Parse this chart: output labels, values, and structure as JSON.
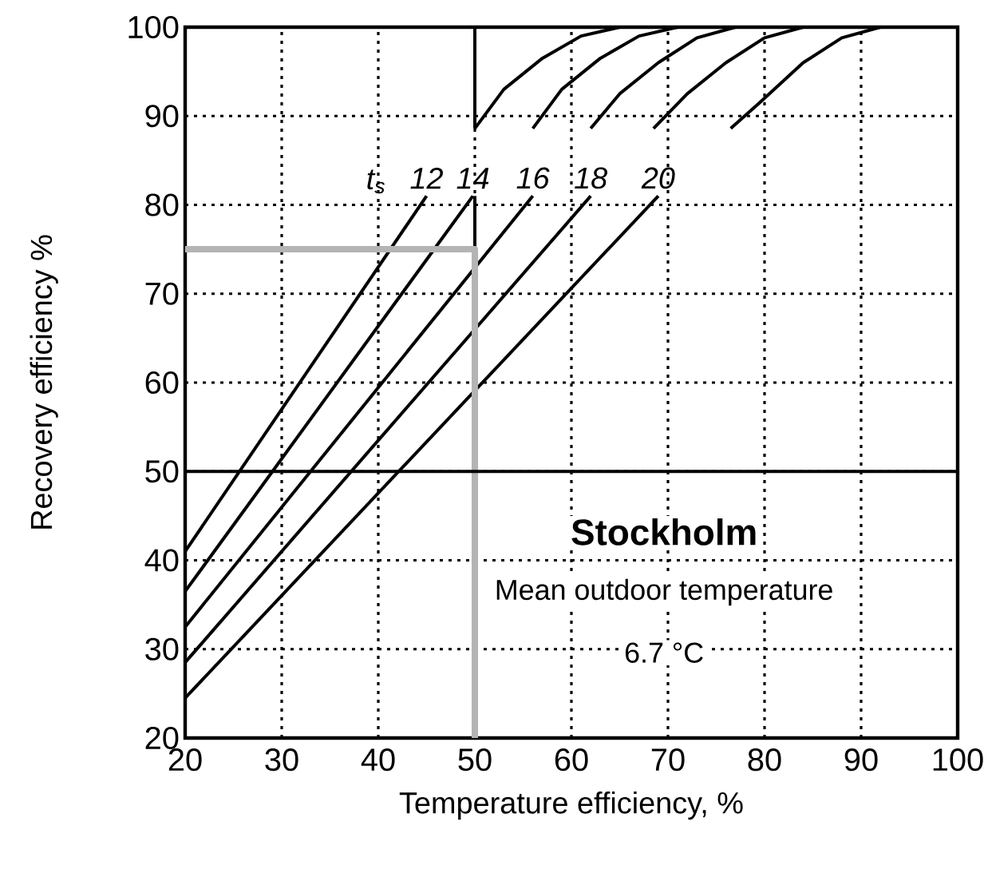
{
  "chart_data": {
    "type": "line",
    "xlabel": "Temperature efficiency, %",
    "ylabel": "Recovery efficiency %",
    "legend_title": "t$_{s}$",
    "xlim": [
      20,
      100
    ],
    "ylim": [
      20,
      100
    ],
    "xticks": [
      20,
      30,
      40,
      50,
      60,
      70,
      80,
      90,
      100
    ],
    "yticks": [
      20,
      30,
      40,
      50,
      60,
      70,
      80,
      90,
      100
    ],
    "grid": true,
    "series": [
      {
        "name": "12",
        "color": "#000000",
        "x": [
          20,
          45
        ],
        "values": [
          41,
          81
        ]
      },
      {
        "name": "14",
        "color": "#000000",
        "x": [
          20,
          49.8
        ],
        "values": [
          36.5,
          81
        ]
      },
      {
        "name": "16",
        "color": "#000000",
        "x": [
          20,
          56
        ],
        "values": [
          32.5,
          81
        ]
      },
      {
        "name": "18",
        "color": "#000000",
        "x": [
          20,
          62
        ],
        "values": [
          28.5,
          81
        ]
      },
      {
        "name": "20",
        "color": "#000000",
        "x": [
          20,
          69
        ],
        "values": [
          24.5,
          81
        ]
      },
      {
        "color": "#000000",
        "x": [
          50,
          53,
          57,
          61,
          65
        ],
        "values": [
          88.6,
          93,
          96.5,
          99,
          100
        ]
      },
      {
        "color": "#000000",
        "x": [
          56,
          59,
          63,
          67,
          71
        ],
        "values": [
          88.6,
          93,
          96.5,
          99,
          100
        ]
      },
      {
        "color": "#000000",
        "x": [
          62,
          65,
          69,
          73,
          77
        ],
        "values": [
          88.6,
          92.5,
          96,
          98.8,
          100
        ]
      },
      {
        "color": "#000000",
        "x": [
          68.5,
          72,
          76,
          80,
          84
        ],
        "values": [
          88.6,
          92.5,
          96,
          98.8,
          100
        ]
      },
      {
        "color": "#000000",
        "x": [
          76.5,
          79.5,
          84,
          88,
          92
        ],
        "values": [
          88.6,
          91.5,
          96,
          98.8,
          100
        ]
      },
      {
        "color": "#000000",
        "x": [
          50,
          50
        ],
        "values": [
          75,
          81
        ]
      },
      {
        "color": "#000000",
        "x": [
          50,
          50
        ],
        "values": [
          88.6,
          100
        ]
      },
      {
        "color": "#b4b4b4",
        "x": [
          20,
          50,
          50
        ],
        "values": [
          75,
          75,
          20
        ]
      }
    ],
    "ref_lines": [
      {
        "axis": "y",
        "value": 50,
        "color": "#000000"
      }
    ],
    "annotations": [
      "Stockholm",
      "Mean outdoor temperature",
      "6.7 °C"
    ]
  }
}
